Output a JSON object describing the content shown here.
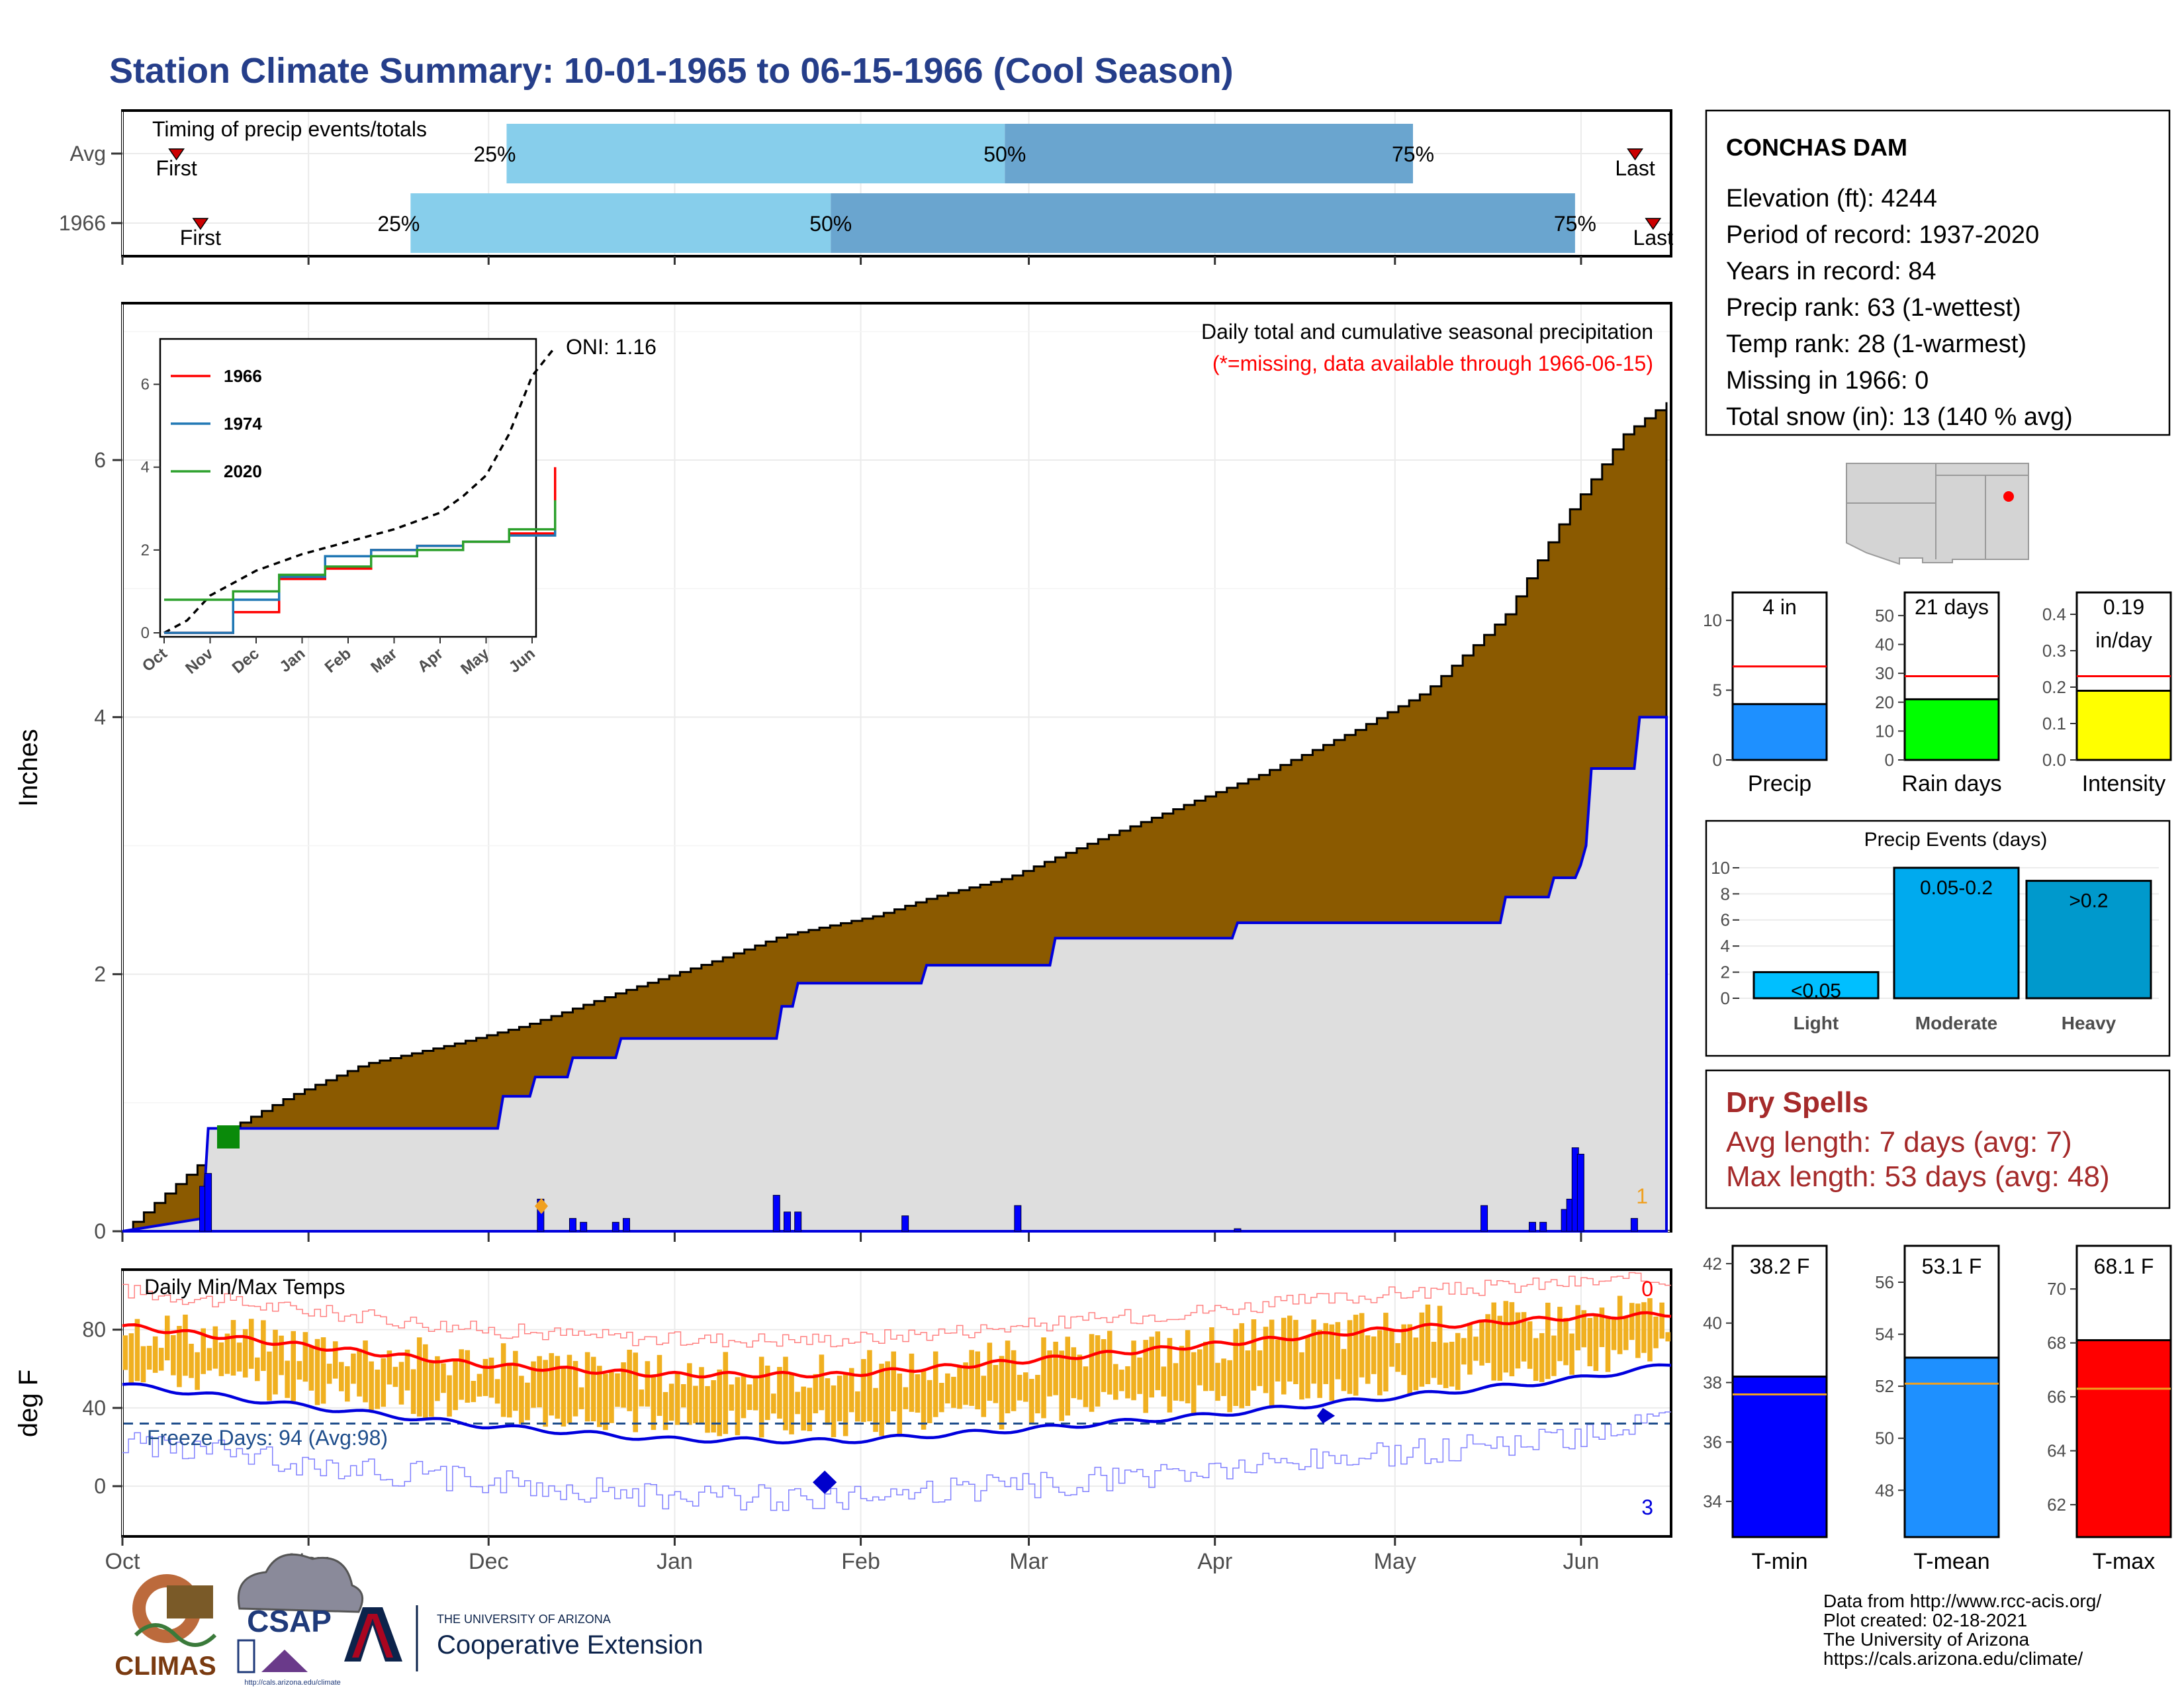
{
  "title": "Station Climate Summary: 10-01-1965 to 06-15-1966 (Cool Season)",
  "colors": {
    "title": "#253e8a",
    "bar_light": "#87ceeb",
    "bar_dark": "#6aa5cf",
    "cum_fill": "#8b5a00",
    "avg_fill": "#dedede",
    "daily_bar": "#0000ff",
    "temp_bar": "#f0b020",
    "red_line": "#ff0000",
    "blue_line": "#0000dd",
    "dry_text": "#a52a2a",
    "precip_box": "#1e90ff",
    "raindays_box": "#00ff00",
    "intensity_box": "#ffff00",
    "tmin_box": "#0000ff",
    "tmean_box": "#1e90ff",
    "tmax_box": "#ff0000",
    "event_light": "#00bfff",
    "event_mod": "#00aaee",
    "event_heavy": "#0099cc"
  },
  "timing": {
    "label": "Timing of precip events/totals",
    "row_labels": [
      "Avg",
      "1966"
    ],
    "first": "First",
    "last": "Last",
    "pct": [
      "25%",
      "50%",
      "75%"
    ],
    "avg": {
      "first": "Oct 10",
      "p25": "Dec 4",
      "p50": "Feb 25",
      "p75": "May 4",
      "last": "Jun 10"
    },
    "year": {
      "first": "Oct 14",
      "p25": "Nov 18",
      "p50": "Jan 27",
      "p75": "May 31",
      "last": "Jun 13"
    }
  },
  "precip_panel": {
    "ylabel": "Inches",
    "yticks": [
      "0",
      "2",
      "4",
      "6"
    ],
    "oni": "ONI: 1.16",
    "note1": "Daily total and cumulative seasonal precipitation",
    "note2": "(*=missing, data available through 1966-06-15)",
    "corner_count": "1"
  },
  "inset": {
    "yticks": [
      "0",
      "2",
      "4",
      "6"
    ],
    "xticks": [
      "Oct",
      "Nov",
      "Dec",
      "Jan",
      "Feb",
      "Mar",
      "Apr",
      "May",
      "Jun"
    ],
    "legend": [
      {
        "name": "1966",
        "color": "#ff0000"
      },
      {
        "name": "1974",
        "color": "#1f77b4"
      },
      {
        "name": "2020",
        "color": "#2ca02c"
      }
    ]
  },
  "temp_panel": {
    "ylabel": "deg F",
    "yticks": [
      "0",
      "40",
      "80"
    ],
    "label": "Daily Min/Max Temps",
    "freeze": "Freeze Days: 94 (Avg:98)",
    "top_count": "0",
    "bottom_count": "3"
  },
  "months": [
    "Oct",
    "Nov",
    "Dec",
    "Jan",
    "Feb",
    "Mar",
    "Apr",
    "May",
    "Jun"
  ],
  "station": {
    "name": "CONCHAS DAM",
    "lines": [
      "Elevation (ft): 4244",
      "Period of record: 1937-2020",
      "Years in record: 84",
      "Precip rank: 63 (1-wettest)",
      "Temp rank: 28 (1-warmest)",
      "Missing in 1966: 0",
      "Total snow (in): 13 (140 % avg)"
    ]
  },
  "gauges": [
    {
      "label": "Precip",
      "value_text": "4 in",
      "value": 4,
      "avg": 6.7,
      "max": 12,
      "ticks": [
        "0",
        "5",
        "10"
      ]
    },
    {
      "label": "Rain days",
      "value_text": "21 days",
      "value": 21,
      "avg": 29,
      "max": 58,
      "ticks": [
        "0",
        "10",
        "20",
        "30",
        "40",
        "50"
      ]
    },
    {
      "label": "Intensity",
      "value_text": "0.19",
      "value_text2": "in/day",
      "value": 0.19,
      "avg": 0.23,
      "max": 0.46,
      "ticks": [
        "0.0",
        "0.1",
        "0.2",
        "0.3",
        "0.4"
      ]
    }
  ],
  "events": {
    "title": "Precip Events (days)",
    "yticks": [
      "0",
      "2",
      "4",
      "6",
      "8",
      "10"
    ],
    "bars": [
      {
        "name": "Light",
        "label": "<0.05",
        "value": 2
      },
      {
        "name": "Moderate",
        "label": "0.05-0.2",
        "value": 10
      },
      {
        "name": "Heavy",
        "label": ">0.2",
        "value": 9
      }
    ]
  },
  "dry": {
    "title": "Dry Spells",
    "line1": "Avg length: 7 days (avg: 7)",
    "line2": "Max length: 53 days (avg: 48)"
  },
  "temps": [
    {
      "label": "T-min",
      "value_text": "38.2 F",
      "value": 38.2,
      "avg": 37.6,
      "min": 32.8,
      "max": 42.6,
      "ticks": [
        "34",
        "36",
        "38",
        "40",
        "42"
      ]
    },
    {
      "label": "T-mean",
      "value_text": "53.1 F",
      "value": 53.1,
      "avg": 52.1,
      "min": 46.2,
      "max": 57.4,
      "ticks": [
        "48",
        "50",
        "52",
        "54",
        "56"
      ]
    },
    {
      "label": "T-max",
      "value_text": "68.1 F",
      "value": 68.1,
      "avg": 66.3,
      "min": 60.8,
      "max": 71.6,
      "ticks": [
        "62",
        "64",
        "66",
        "68",
        "70"
      ]
    }
  ],
  "credits": [
    "Data from http://www.rcc-acis.org/",
    "Plot created: 02-18-2021",
    "The University of Arizona",
    "https://cals.arizona.edu/climate/"
  ],
  "logos": {
    "climas": "CLIMAS",
    "csap": "CSAP",
    "csap_url": "http://cals.arizona.edu/climate",
    "ua_line1": "THE UNIVERSITY OF ARIZONA",
    "ua_line2": "Cooperative Extension"
  },
  "chart_data": [
    {
      "type": "area",
      "title": "Daily total and cumulative seasonal precipitation",
      "ylabel": "Inches",
      "ylim": [
        0,
        7.2
      ],
      "grid": true,
      "series": [
        {
          "values_cum_1966": [
            [
              0,
              0
            ],
            [
              15,
              0.55
            ],
            [
              20,
              0.8
            ],
            [
              31,
              1.05
            ],
            [
              45,
              1.3
            ],
            [
              61,
              1.45
            ],
            [
              75,
              1.6
            ],
            [
              92,
              1.85
            ],
            [
              110,
              2.1
            ],
            [
              123,
              2.3
            ],
            [
              140,
              2.45
            ],
            [
              151,
              2.6
            ],
            [
              165,
              2.75
            ],
            [
              182,
              3.05
            ],
            [
              200,
              3.35
            ],
            [
              212,
              3.55
            ],
            [
              230,
              3.9
            ],
            [
              243,
              4.2
            ],
            [
              258,
              4.8
            ],
            [
              268,
              5.5
            ],
            [
              280,
              6.2
            ],
            [
              288,
              6.45
            ]
          ]
        },
        {
          "values_avg": [
            [
              0,
              0
            ],
            [
              15,
              0.1
            ],
            [
              16,
              0.8
            ],
            [
              31,
              0.8
            ],
            [
              70,
              0.8
            ],
            [
              71,
              1.05
            ],
            [
              76,
              1.05
            ],
            [
              77,
              1.2
            ],
            [
              83,
              1.2
            ],
            [
              84,
              1.35
            ],
            [
              92,
              1.35
            ],
            [
              93,
              1.5
            ],
            [
              122,
              1.5
            ],
            [
              123,
              1.75
            ],
            [
              125,
              1.75
            ],
            [
              126,
              1.93
            ],
            [
              149,
              1.93
            ],
            [
              150,
              2.07
            ],
            [
              173,
              2.07
            ],
            [
              174,
              2.28
            ],
            [
              207,
              2.28
            ],
            [
              208,
              2.4
            ],
            [
              257,
              2.4
            ],
            [
              258,
              2.6
            ],
            [
              266,
              2.6
            ],
            [
              267,
              2.75
            ],
            [
              271,
              2.75
            ],
            [
              272,
              2.85
            ],
            [
              273,
              3.0
            ],
            [
              274,
              3.6
            ],
            [
              282,
              3.6
            ],
            [
              283,
              4.0
            ],
            [
              288,
              4.0
            ]
          ]
        }
      ],
      "daily_1966": [
        [
          15,
          0.35
        ],
        [
          16,
          0.45
        ],
        [
          78,
          0.25
        ],
        [
          84,
          0.1
        ],
        [
          86,
          0.07
        ],
        [
          92,
          0.07
        ],
        [
          94,
          0.1
        ],
        [
          122,
          0.28
        ],
        [
          124,
          0.15
        ],
        [
          126,
          0.15
        ],
        [
          146,
          0.12
        ],
        [
          167,
          0.2
        ],
        [
          208,
          0.02
        ],
        [
          254,
          0.2
        ],
        [
          263,
          0.07
        ],
        [
          265,
          0.07
        ],
        [
          269,
          0.17
        ],
        [
          270,
          0.25
        ],
        [
          271,
          0.65
        ],
        [
          272,
          0.6
        ],
        [
          282,
          0.1
        ]
      ]
    },
    {
      "type": "line",
      "title": "",
      "xlabel": "",
      "ylabel": "",
      "ylim": [
        0,
        7
      ],
      "categories": [
        "Oct",
        "Nov",
        "Dec",
        "Jan",
        "Feb",
        "Mar",
        "Apr",
        "May",
        "Jun"
      ],
      "series": [
        {
          "name": "1966",
          "values": [
            0.0,
            0.5,
            1.3,
            1.55,
            2.0,
            2.1,
            2.2,
            2.4,
            4.0
          ]
        },
        {
          "name": "1974",
          "values": [
            0.0,
            0.8,
            1.35,
            1.85,
            2.0,
            2.1,
            2.2,
            2.35,
            2.7
          ]
        },
        {
          "name": "2020",
          "values": [
            0.8,
            1.0,
            1.4,
            1.6,
            1.85,
            2.0,
            2.2,
            2.5,
            3.2
          ]
        }
      ]
    },
    {
      "type": "bar",
      "title": "Daily Min/Max Temps",
      "ylabel": "deg F",
      "ylim": [
        -25,
        110
      ],
      "series": [
        {
          "name": "avg max",
          "values": [
            [
              0,
              82
            ],
            [
              30,
              72
            ],
            [
              60,
              62
            ],
            [
              90,
              57
            ],
            [
              120,
              57
            ],
            [
              150,
              64
            ],
            [
              180,
              72
            ],
            [
              210,
              80
            ],
            [
              240,
              86
            ],
            [
              258,
              88
            ]
          ]
        },
        {
          "name": "avg min",
          "values": [
            [
              0,
              52
            ],
            [
              30,
              41
            ],
            [
              60,
              31
            ],
            [
              90,
              24
            ],
            [
              120,
              23
            ],
            [
              150,
              29
            ],
            [
              180,
              36
            ],
            [
              210,
              45
            ],
            [
              240,
              54
            ],
            [
              258,
              62
            ]
          ]
        }
      ]
    }
  ]
}
